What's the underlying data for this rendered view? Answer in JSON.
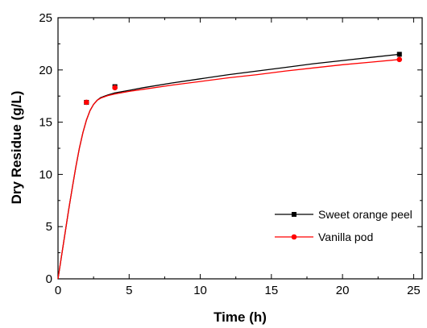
{
  "chart_data": {
    "type": "scatter",
    "title": "",
    "xlabel": "Time (h)",
    "ylabel": "Dry Residue (g/L)",
    "xlim": [
      0,
      25.6
    ],
    "ylim": [
      0,
      25
    ],
    "x_ticks": [
      0,
      5,
      10,
      15,
      20,
      25
    ],
    "y_ticks": [
      0,
      5,
      10,
      15,
      20,
      25
    ],
    "grid": false,
    "legend_position": "bottom-right",
    "series": [
      {
        "name": "Sweet orange peel",
        "color": "#000000",
        "marker": "square",
        "points": [
          {
            "x": 0,
            "y": 0
          },
          {
            "x": 2,
            "y": 16.9
          },
          {
            "x": 4,
            "y": 18.4
          },
          {
            "x": 24,
            "y": 21.5
          }
        ],
        "fit_curve": [
          [
            0,
            0
          ],
          [
            0.25,
            2.2
          ],
          [
            0.5,
            4.4
          ],
          [
            0.75,
            6.6
          ],
          [
            1.0,
            8.7
          ],
          [
            1.25,
            10.7
          ],
          [
            1.5,
            12.5
          ],
          [
            1.75,
            14.0
          ],
          [
            2.0,
            15.2
          ],
          [
            2.25,
            16.1
          ],
          [
            2.5,
            16.7
          ],
          [
            2.75,
            17.1
          ],
          [
            3.0,
            17.35
          ],
          [
            3.5,
            17.6
          ],
          [
            4.0,
            17.8
          ],
          [
            5,
            18.05
          ],
          [
            6,
            18.3
          ],
          [
            8,
            18.75
          ],
          [
            10,
            19.15
          ],
          [
            12,
            19.55
          ],
          [
            14,
            19.9
          ],
          [
            16,
            20.25
          ],
          [
            18,
            20.6
          ],
          [
            20,
            20.9
          ],
          [
            22,
            21.2
          ],
          [
            24,
            21.5
          ]
        ]
      },
      {
        "name": "Vanilla pod",
        "color": "#ff0000",
        "marker": "circle",
        "points": [
          {
            "x": 0,
            "y": 0
          },
          {
            "x": 2,
            "y": 16.9
          },
          {
            "x": 4,
            "y": 18.3
          },
          {
            "x": 24,
            "y": 21.0
          }
        ],
        "fit_curve": [
          [
            0,
            0
          ],
          [
            0.25,
            2.2
          ],
          [
            0.5,
            4.4
          ],
          [
            0.75,
            6.6
          ],
          [
            1.0,
            8.7
          ],
          [
            1.25,
            10.7
          ],
          [
            1.5,
            12.5
          ],
          [
            1.75,
            14.0
          ],
          [
            2.0,
            15.2
          ],
          [
            2.25,
            16.1
          ],
          [
            2.5,
            16.7
          ],
          [
            2.75,
            17.1
          ],
          [
            3.0,
            17.3
          ],
          [
            3.5,
            17.55
          ],
          [
            4.0,
            17.7
          ],
          [
            5,
            17.95
          ],
          [
            6,
            18.15
          ],
          [
            8,
            18.55
          ],
          [
            10,
            18.9
          ],
          [
            12,
            19.25
          ],
          [
            14,
            19.55
          ],
          [
            16,
            19.9
          ],
          [
            18,
            20.2
          ],
          [
            20,
            20.5
          ],
          [
            22,
            20.75
          ],
          [
            24,
            21.0
          ]
        ]
      }
    ]
  }
}
